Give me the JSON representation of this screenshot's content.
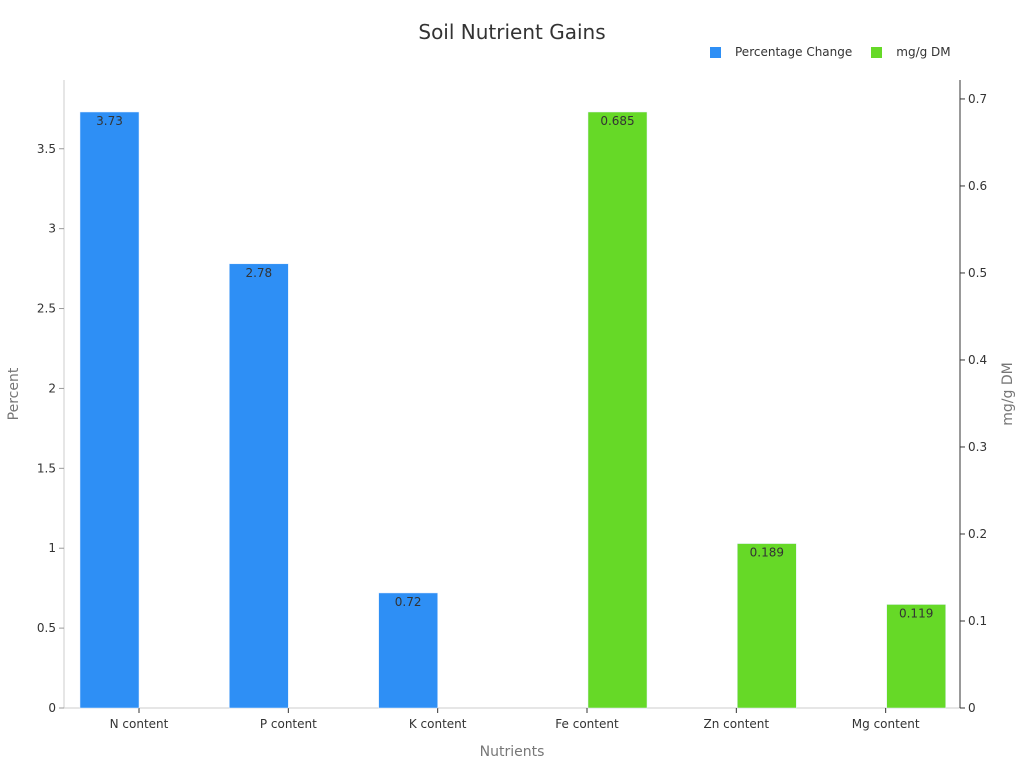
{
  "chart_data": {
    "type": "bar",
    "title": "Soil Nutrient Gains",
    "xlabel": "Nutrients",
    "ylabel": "Percent",
    "y2label": "mg/g DM",
    "categories": [
      "N content",
      "P content",
      "K content",
      "Fe content",
      "Zn content",
      "Mg content"
    ],
    "series": [
      {
        "name": "Percentage Change",
        "axis": "left",
        "color": "#2e8ff5",
        "values": [
          3.73,
          2.78,
          0.72,
          null,
          null,
          null
        ]
      },
      {
        "name": "mg/g DM",
        "axis": "right",
        "color": "#66d927",
        "values": [
          null,
          null,
          null,
          0.685,
          0.189,
          0.119
        ]
      }
    ],
    "ylim": [
      0,
      3.73
    ],
    "y2lim": [
      0,
      0.685
    ],
    "yticks": [
      0,
      0.5,
      1,
      1.5,
      2,
      2.5,
      3,
      3.5
    ],
    "y2ticks": [
      0,
      0.1,
      0.2,
      0.3,
      0.4,
      0.5,
      0.6,
      0.7
    ],
    "grid": false,
    "legend_position": "top-right"
  },
  "legend": [
    {
      "label": "Percentage Change",
      "color": "#2e8ff5"
    },
    {
      "label": "mg/g DM",
      "color": "#66d927"
    }
  ]
}
